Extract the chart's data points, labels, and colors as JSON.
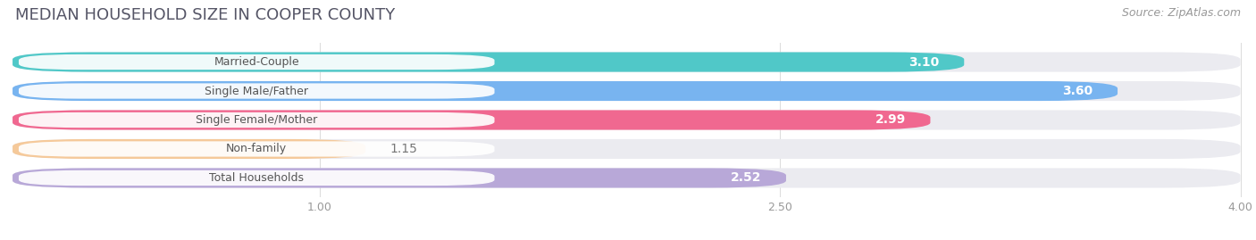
{
  "title": "MEDIAN HOUSEHOLD SIZE IN COOPER COUNTY",
  "source": "Source: ZipAtlas.com",
  "categories": [
    "Married-Couple",
    "Single Male/Father",
    "Single Female/Mother",
    "Non-family",
    "Total Households"
  ],
  "values": [
    3.1,
    3.6,
    2.99,
    1.15,
    2.52
  ],
  "bar_colors": [
    "#50C8C8",
    "#78B4F0",
    "#F06890",
    "#F5C99A",
    "#B8A8D8"
  ],
  "bar_bg_color": "#EBEBF0",
  "xlim_min": 0.0,
  "xlim_max": 4.0,
  "xticks": [
    1.0,
    2.5,
    4.0
  ],
  "xtick_labels": [
    "1.00",
    "2.50",
    "4.00"
  ],
  "title_fontsize": 13,
  "source_fontsize": 9,
  "bar_label_fontsize": 10,
  "cat_label_fontsize": 9,
  "background_color": "#ffffff",
  "title_color": "#555566",
  "source_color": "#999999"
}
